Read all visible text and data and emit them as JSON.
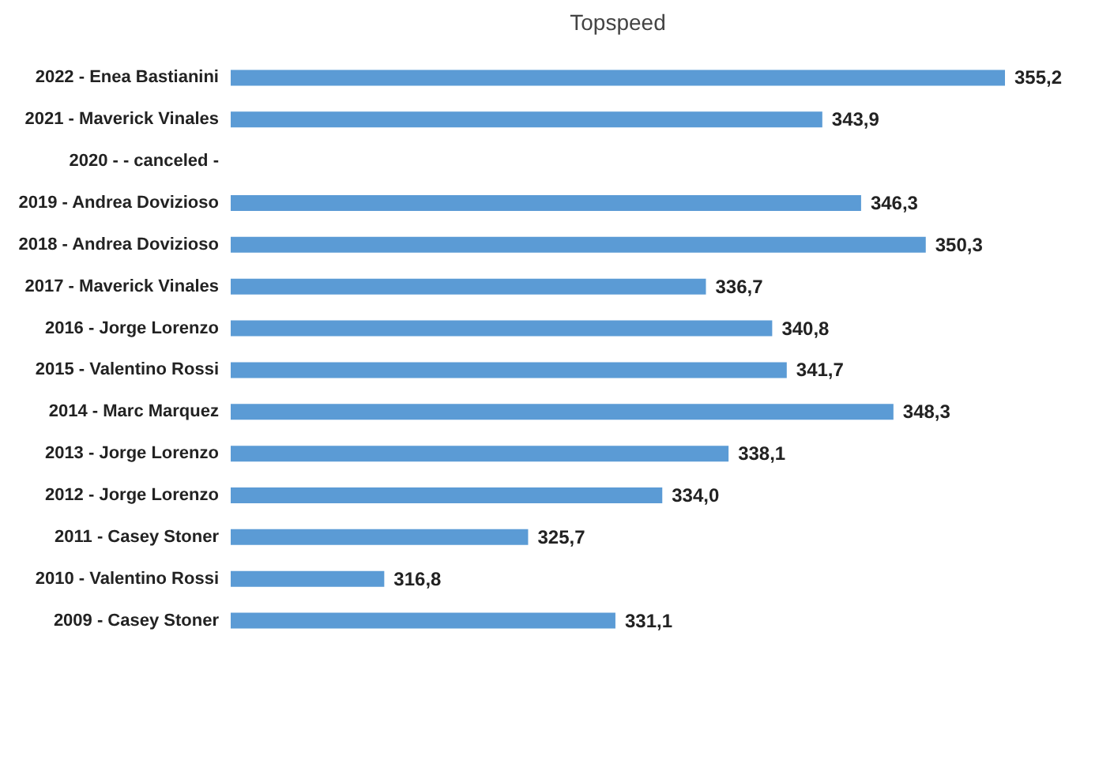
{
  "chart_data": {
    "type": "bar",
    "title": "Topspeed",
    "orientation": "horizontal",
    "categories": [
      "2022 - Enea Bastianini",
      "2021 - Maverick Vinales",
      "2020 -  - canceled -",
      "2019 - Andrea Dovizioso",
      "2018 - Andrea Dovizioso",
      "2017 - Maverick Vinales",
      "2016 - Jorge Lorenzo",
      "2015 - Valentino Rossi",
      "2014 - Marc Marquez",
      "2013 - Jorge Lorenzo",
      "2012 - Jorge Lorenzo",
      "2011 - Casey Stoner",
      "2010 - Valentino Rossi",
      "2009 - Casey Stoner"
    ],
    "values": [
      355.2,
      343.9,
      null,
      346.3,
      350.3,
      336.7,
      340.8,
      341.7,
      348.3,
      338.1,
      334.0,
      325.7,
      316.8,
      331.1
    ],
    "value_labels": [
      "355,2",
      "343,9",
      null,
      "346,3",
      "350,3",
      "336,7",
      "340,8",
      "341,7",
      "348,3",
      "338,1",
      "334,0",
      "325,7",
      "316,8",
      "331,1"
    ],
    "color": "#5b9bd5",
    "xlim": [
      307.3,
      355.2
    ]
  }
}
